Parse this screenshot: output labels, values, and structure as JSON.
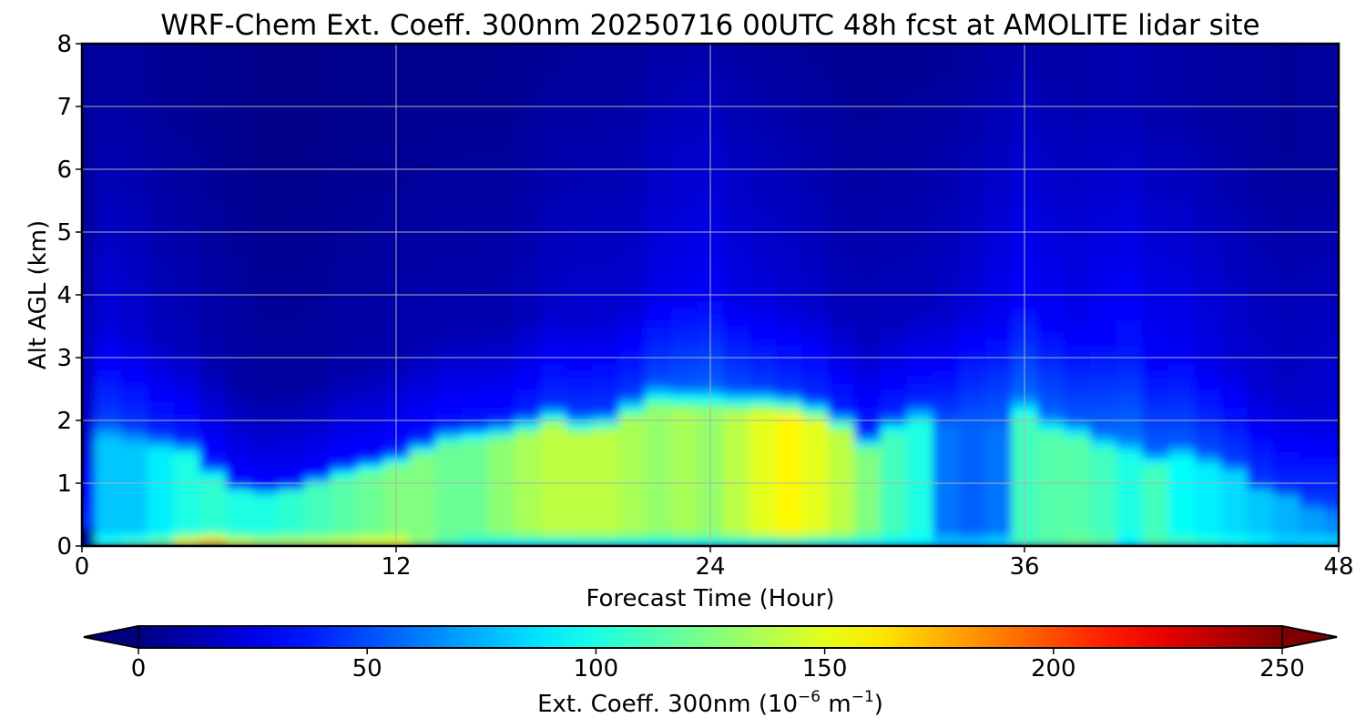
{
  "chart_data": {
    "type": "heatmap",
    "title": "WRF-Chem Ext. Coeff. 300nm  20250716 00UTC 48h fcst at AMOLITE lidar site",
    "xlabel": "Forecast Time (Hour)",
    "ylabel": "Alt AGL (km)",
    "xlim": [
      0,
      48
    ],
    "ylim": [
      0,
      8
    ],
    "x_ticks": [
      "0",
      "12",
      "24",
      "36",
      "48"
    ],
    "y_ticks": [
      "0",
      "1",
      "2",
      "3",
      "4",
      "5",
      "6",
      "7",
      "8"
    ],
    "grid": true,
    "colorbar": {
      "label": "Ext. Coeff. 300nm  (10",
      "label_exp": "−6",
      "label_mid": " m",
      "label_exp2": "−1",
      "label_end": ")",
      "range": [
        0,
        250
      ],
      "ticks": [
        "0",
        "50",
        "100",
        "150",
        "200",
        "250"
      ],
      "colormap": "jet",
      "extend": "both",
      "placement": "bottom"
    },
    "x_hours": [
      0,
      1,
      2,
      3,
      4,
      5,
      6,
      7,
      8,
      9,
      10,
      11,
      12,
      13,
      14,
      15,
      16,
      17,
      18,
      19,
      20,
      21,
      22,
      23,
      24,
      25,
      26,
      27,
      28,
      29,
      30,
      31,
      32,
      33,
      34,
      35,
      36,
      37,
      38,
      39,
      40,
      41,
      42,
      43,
      44,
      45,
      46,
      47,
      48
    ],
    "profiles": {
      "surface_value": [
        5,
        110,
        120,
        130,
        175,
        195,
        160,
        150,
        150,
        150,
        155,
        160,
        160,
        130,
        110,
        95,
        90,
        88,
        88,
        90,
        90,
        90,
        90,
        90,
        92,
        92,
        92,
        92,
        90,
        90,
        90,
        88,
        90,
        90,
        90,
        95,
        110,
        115,
        125,
        120,
        90,
        115,
        115,
        110,
        105,
        100,
        90,
        95,
        95
      ],
      "mid_value": [
        5,
        80,
        80,
        90,
        100,
        105,
        100,
        100,
        105,
        110,
        115,
        120,
        125,
        125,
        120,
        120,
        128,
        135,
        140,
        140,
        140,
        135,
        130,
        135,
        130,
        140,
        150,
        158,
        150,
        140,
        125,
        110,
        100,
        60,
        55,
        60,
        110,
        115,
        115,
        110,
        100,
        110,
        95,
        90,
        85,
        80,
        75,
        70,
        65
      ],
      "layer_top_km": [
        0.1,
        2.0,
        1.9,
        1.8,
        1.7,
        1.3,
        1.0,
        0.95,
        1.0,
        1.15,
        1.3,
        1.4,
        1.5,
        1.7,
        1.9,
        1.95,
        2.0,
        2.1,
        2.25,
        2.1,
        2.15,
        2.4,
        2.6,
        2.55,
        2.55,
        2.5,
        2.5,
        2.45,
        2.35,
        2.15,
        1.8,
        2.1,
        2.3,
        2.2,
        2.3,
        2.1,
        2.4,
        2.1,
        2.0,
        1.8,
        1.7,
        1.5,
        1.65,
        1.5,
        1.35,
        1.0,
        0.9,
        0.7,
        0.6
      ],
      "background_value": [
        20,
        22,
        20,
        16,
        14,
        12,
        10,
        8,
        8,
        8,
        10,
        10,
        12,
        12,
        12,
        12,
        12,
        15,
        18,
        20,
        20,
        20,
        25,
        28,
        30,
        25,
        22,
        20,
        18,
        15,
        15,
        15,
        15,
        18,
        22,
        28,
        32,
        30,
        28,
        32,
        35,
        30,
        28,
        25,
        22,
        20,
        18,
        20,
        22
      ]
    }
  }
}
